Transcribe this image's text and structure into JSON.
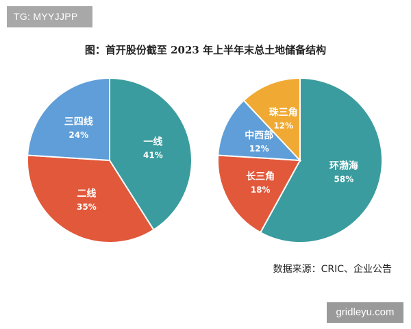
{
  "badge": {
    "text": "TG: MYYJJPP"
  },
  "title": "图：首开股份截至 2023 年上半年末总土地储备结构",
  "source": "数据来源：CRIC、企业公告",
  "watermark": "gridleyu.com",
  "chart_data": [
    {
      "type": "pie",
      "slices": [
        {
          "label": "一线",
          "value": 41,
          "value_text": "41%",
          "color": "#3a9c9e"
        },
        {
          "label": "二线",
          "value": 35,
          "value_text": "35%",
          "color": "#e2583a"
        },
        {
          "label": "三四线",
          "value": 24,
          "value_text": "24%",
          "color": "#5f9ed8"
        }
      ]
    },
    {
      "type": "pie",
      "slices": [
        {
          "label": "环渤海",
          "value": 58,
          "value_text": "58%",
          "color": "#3a9c9e"
        },
        {
          "label": "长三角",
          "value": 18,
          "value_text": "18%",
          "color": "#e2583a"
        },
        {
          "label": "中西部",
          "value": 12,
          "value_text": "12%",
          "color": "#5f9ed8"
        },
        {
          "label": "珠三角",
          "value": 12,
          "value_text": "12%",
          "color": "#f0aa34"
        }
      ]
    }
  ]
}
